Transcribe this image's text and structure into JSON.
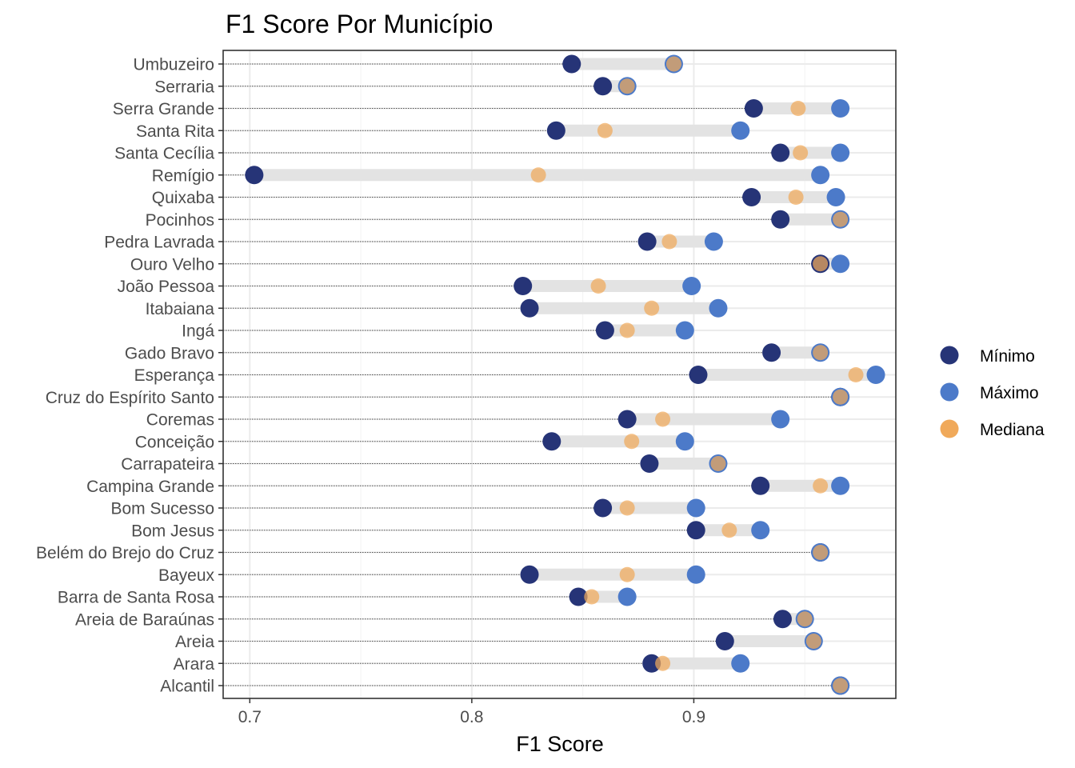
{
  "chart_data": {
    "type": "dumbbell",
    "title": "F1 Score Por Município",
    "xlabel": "F1 Score",
    "ylabel": "",
    "xlim": [
      0.688,
      0.991
    ],
    "xticks": [
      0.7,
      0.8,
      0.9
    ],
    "xtick_labels": [
      "0.7",
      "0.8",
      "0.9"
    ],
    "grid": true,
    "legend_position": "right",
    "legend": [
      {
        "key": "min",
        "label": "Mínimo",
        "color": "#263477"
      },
      {
        "key": "max",
        "label": "Máximo",
        "color": "#4c7ac9"
      },
      {
        "key": "median",
        "label": "Mediana",
        "color": "#f0a95a"
      }
    ],
    "categories": [
      "Umbuzeiro",
      "Serraria",
      "Serra Grande",
      "Santa Rita",
      "Santa Cecília",
      "Remígio",
      "Quixaba",
      "Pocinhos",
      "Pedra Lavrada",
      "Ouro Velho",
      "João Pessoa",
      "Itabaiana",
      "Ingá",
      "Gado Bravo",
      "Esperança",
      "Cruz do Espírito Santo",
      "Coremas",
      "Conceição",
      "Carrapateira",
      "Campina Grande",
      "Bom Sucesso",
      "Bom Jesus",
      "Belém do Brejo do Cruz",
      "Bayeux",
      "Barra de Santa Rosa",
      "Areia de Baraúnas",
      "Areia",
      "Arara",
      "Alcantil"
    ],
    "min": [
      0.845,
      0.859,
      0.927,
      0.838,
      0.939,
      0.702,
      0.926,
      0.939,
      0.879,
      0.957,
      0.823,
      0.826,
      0.86,
      0.935,
      0.902,
      0.966,
      0.87,
      0.836,
      0.88,
      0.93,
      0.859,
      0.901,
      0.957,
      0.826,
      0.848,
      0.94,
      0.914,
      0.881,
      0.966
    ],
    "max": [
      0.891,
      0.87,
      0.966,
      0.921,
      0.966,
      0.957,
      0.964,
      0.966,
      0.909,
      0.966,
      0.899,
      0.911,
      0.896,
      0.957,
      0.982,
      0.966,
      0.939,
      0.896,
      0.911,
      0.966,
      0.901,
      0.93,
      0.957,
      0.901,
      0.87,
      0.95,
      0.954,
      0.921,
      0.966
    ],
    "median": [
      0.891,
      0.87,
      0.947,
      0.86,
      0.948,
      0.83,
      0.946,
      0.966,
      0.889,
      0.957,
      0.857,
      0.881,
      0.87,
      0.957,
      0.973,
      0.966,
      0.886,
      0.872,
      0.911,
      0.957,
      0.87,
      0.916,
      0.957,
      0.87,
      0.854,
      0.95,
      0.954,
      0.886,
      0.966
    ]
  }
}
